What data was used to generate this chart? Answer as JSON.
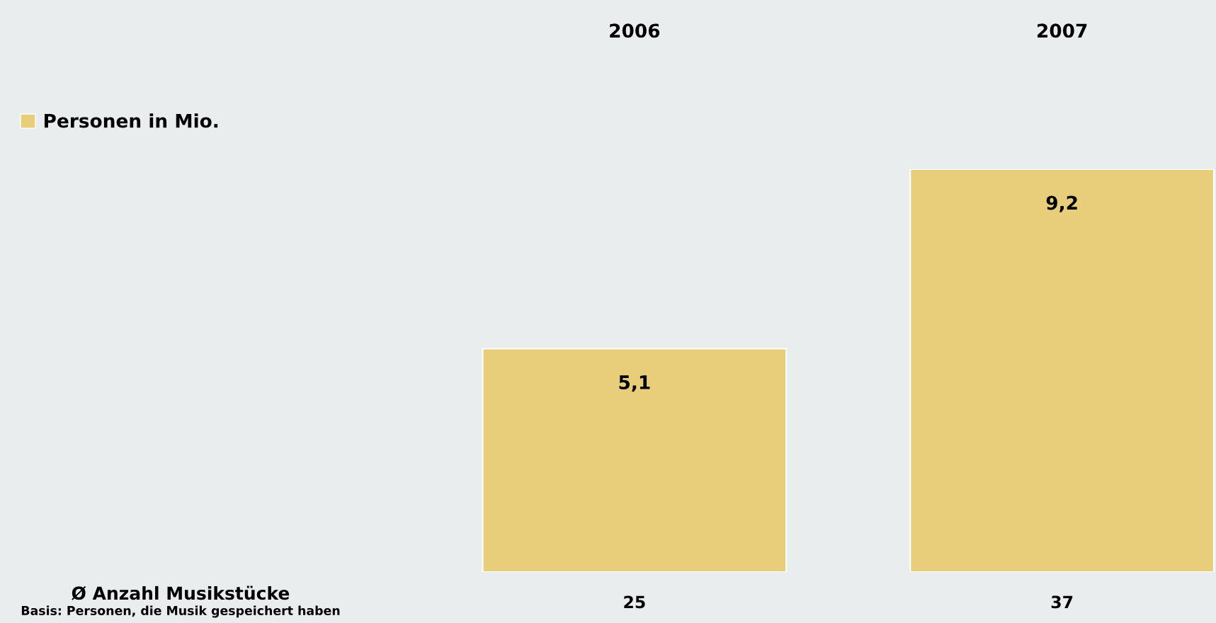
{
  "chart_data": {
    "type": "bar",
    "categories": [
      "2006",
      "2007"
    ],
    "series": [
      {
        "name": "Personen in Mio.",
        "color": "#e8cd7b",
        "values": [
          5.1,
          9.2
        ],
        "value_labels": [
          "5,1",
          "9,2"
        ]
      }
    ],
    "legend": "top left",
    "grid": false,
    "annotations": [
      "25",
      "37",
      "Ø Anzahl Musikstücke",
      "Basis: Personen, die Musik gespeichert haben"
    ]
  }
}
